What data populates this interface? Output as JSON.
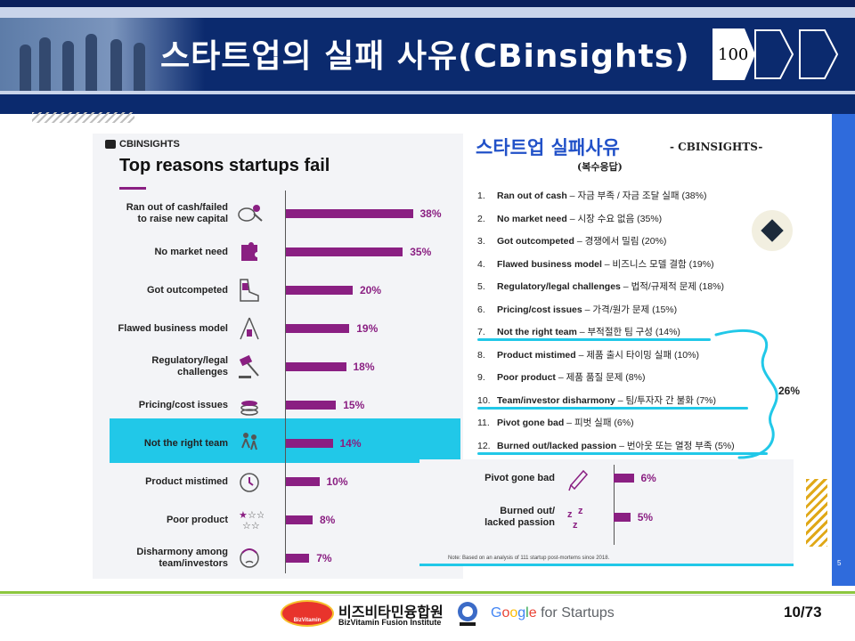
{
  "header": {
    "title": "스타트업의 실패 사유(CBinsights)",
    "badge_number": "100"
  },
  "left_chart": {
    "brand": "CBINSIGHTS",
    "title": "Top reasons startups fail",
    "highlight_color": "#21c8e8",
    "bar_color": "#8a1f82"
  },
  "chart_data": [
    {
      "type": "bar",
      "orientation": "horizontal",
      "title": "Top reasons startups fail",
      "categories": [
        "Ran out of cash/failed\nto raise new capital",
        "No market need",
        "Got outcompeted",
        "Flawed business model",
        "Regulatory/legal\nchallenges",
        "Pricing/cost issues",
        "Not the right team",
        "Product mistimed",
        "Poor product",
        "Disharmony among\nteam/investors"
      ],
      "values": [
        38,
        35,
        20,
        19,
        18,
        15,
        14,
        10,
        8,
        7
      ],
      "value_labels": [
        "38%",
        "35%",
        "20%",
        "19%",
        "18%",
        "15%",
        "14%",
        "10%",
        "8%",
        "7%"
      ],
      "icons": [
        "piggy-bank-icon",
        "puzzle-piece-icon",
        "sneaker-icon",
        "house-of-cards-icon",
        "gavel-icon",
        "coin-stack-icon",
        "team-icon",
        "alarm-clock-icon",
        "star-rating-icon",
        "frustrated-face-icon"
      ],
      "highlighted": "Not the right team",
      "xlim": [
        0,
        40
      ]
    },
    {
      "type": "bar",
      "orientation": "horizontal",
      "categories": [
        "Pivot gone bad",
        "Burned out/\nlacked passion"
      ],
      "values": [
        6,
        5
      ],
      "value_labels": [
        "6%",
        "5%"
      ],
      "icons": [
        "pencil-icon",
        "sleep-zzz-icon"
      ],
      "xlim": [
        0,
        40
      ]
    }
  ],
  "korean_list": {
    "title": "스타트업 실패사유",
    "subtitle": "- CBINSIGHTS-",
    "note": "(복수응답)",
    "items": [
      {
        "n": "1.",
        "en": "Ran out of cash",
        "kr": " – 자금 부족 / 자금 조달 실패 (38%)"
      },
      {
        "n": "2.",
        "en": "No market need",
        "kr": " – 시장 수요 없음 (35%)"
      },
      {
        "n": "3.",
        "en": "Got outcompeted",
        "kr": " – 경쟁에서 밀림 (20%)"
      },
      {
        "n": "4.",
        "en": "Flawed business model",
        "kr": " – 비즈니스 모델 결함 (19%)"
      },
      {
        "n": "5.",
        "en": "Regulatory/legal challenges",
        "kr": " – 법적/규제적 문제 (18%)"
      },
      {
        "n": "6.",
        "en": "Pricing/cost issues",
        "kr": " – 가격/원가 문제 (15%)"
      },
      {
        "n": "7.",
        "en": "Not the right team",
        "kr": " – 부적절한 팀 구성 (14%)"
      },
      {
        "n": "8.",
        "en": "Product mistimed",
        "kr": " – 제품 출시 타이밍 실패 (10%)"
      },
      {
        "n": "9.",
        "en": "Poor product",
        "kr": " – 제품 품질 문제 (8%)"
      },
      {
        "n": "10.",
        "en": "Team/investor disharmony",
        "kr": " – 팀/투자자 간 불화 (7%)"
      },
      {
        "n": "11.",
        "en": "Pivot gone bad",
        "kr": " – 피벗 실패 (6%)"
      },
      {
        "n": "12.",
        "en": "Burned out/lacked passion",
        "kr": " – 번아웃 또는 열정 부족 (5%)"
      }
    ],
    "bracket_total": "26%",
    "underline_color": "#21c8e8"
  },
  "inset": {
    "note": "Note: Based on an analysis of 111 startup post-mortems since 2018."
  },
  "slide_page_mark": "5",
  "footer": {
    "org_kr": "비즈비타민융합원",
    "org_en": "BizVitamin Fusion Institute",
    "logo_text": "BizVitamin",
    "google": "Google",
    "google_suffix": " for Startups",
    "page": "10/73"
  }
}
